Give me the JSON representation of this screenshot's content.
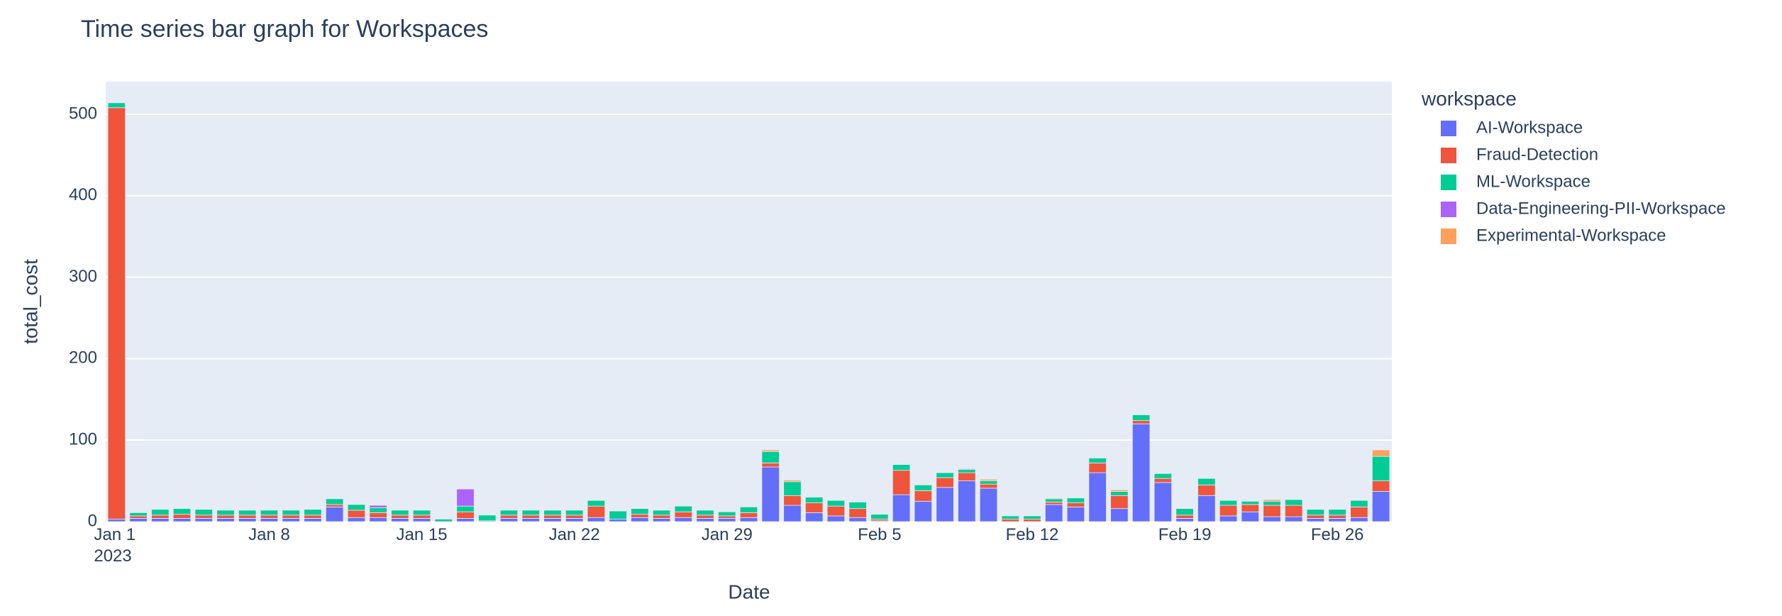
{
  "chart_data": {
    "type": "bar",
    "stacked": true,
    "title": "Time series bar graph for Workspaces",
    "x_label": "Date",
    "y_label": "total_cost",
    "legend_title": "workspace",
    "legend_position": "right",
    "x": [
      "2023-01-01",
      "2023-01-02",
      "2023-01-03",
      "2023-01-04",
      "2023-01-05",
      "2023-01-06",
      "2023-01-07",
      "2023-01-08",
      "2023-01-09",
      "2023-01-10",
      "2023-01-11",
      "2023-01-12",
      "2023-01-13",
      "2023-01-14",
      "2023-01-15",
      "2023-01-16",
      "2023-01-17",
      "2023-01-18",
      "2023-01-19",
      "2023-01-20",
      "2023-01-21",
      "2023-01-22",
      "2023-01-23",
      "2023-01-24",
      "2023-01-25",
      "2023-01-26",
      "2023-01-27",
      "2023-01-28",
      "2023-01-29",
      "2023-01-30",
      "2023-01-31",
      "2023-02-01",
      "2023-02-02",
      "2023-02-03",
      "2023-02-04",
      "2023-02-05",
      "2023-02-06",
      "2023-02-07",
      "2023-02-08",
      "2023-02-09",
      "2023-02-10",
      "2023-02-11",
      "2023-02-12",
      "2023-02-13",
      "2023-02-14",
      "2023-02-15",
      "2023-02-16",
      "2023-02-17",
      "2023-02-18",
      "2023-02-19",
      "2023-02-20",
      "2023-02-21",
      "2023-02-22",
      "2023-02-23",
      "2023-02-24",
      "2023-02-25",
      "2023-02-26",
      "2023-02-27",
      "2023-02-28"
    ],
    "xlim": [
      "2022-12-31T12:00",
      "2023-02-28T12:00"
    ],
    "xticks": [
      {
        "value": "2023-01-01",
        "label": "Jan 1\n2023"
      },
      {
        "value": "2023-01-08",
        "label": "Jan 8"
      },
      {
        "value": "2023-01-15",
        "label": "Jan 15"
      },
      {
        "value": "2023-01-22",
        "label": "Jan 22"
      },
      {
        "value": "2023-01-29",
        "label": "Jan 29"
      },
      {
        "value": "2023-02-05",
        "label": "Feb 5"
      },
      {
        "value": "2023-02-12",
        "label": "Feb 12"
      },
      {
        "value": "2023-02-19",
        "label": "Feb 19"
      },
      {
        "value": "2023-02-26",
        "label": "Feb 26"
      }
    ],
    "ylim": [
      0,
      540
    ],
    "yticks": [
      0,
      100,
      200,
      300,
      400,
      500
    ],
    "grid": true,
    "series": [
      {
        "name": "AI-Workspace",
        "color": "#636efa",
        "values": [
          3,
          4,
          4,
          4,
          4,
          4,
          4,
          4,
          4,
          4,
          18,
          5,
          5,
          4,
          4,
          0,
          4,
          1,
          4,
          4,
          4,
          4,
          5,
          3,
          5,
          4,
          5,
          4,
          4,
          5,
          67,
          20,
          11,
          7,
          5,
          1,
          33,
          25,
          42,
          50,
          41,
          0,
          0,
          21,
          18,
          60,
          16,
          120,
          48,
          4,
          32,
          7,
          12,
          6,
          6,
          4,
          4,
          5,
          37
        ]
      },
      {
        "name": "Fraud-Detection",
        "color": "#EF553B",
        "values": [
          505,
          3,
          4,
          5,
          4,
          4,
          4,
          4,
          4,
          4,
          3,
          9,
          6,
          4,
          4,
          0,
          8,
          0,
          4,
          4,
          4,
          4,
          14,
          0,
          4,
          4,
          7,
          4,
          3,
          6,
          5,
          12,
          12,
          12,
          11,
          2,
          30,
          13,
          12,
          10,
          5,
          3,
          3,
          3,
          5,
          12,
          16,
          4,
          5,
          4,
          13,
          13,
          9,
          14,
          14,
          4,
          4,
          13,
          13
        ]
      },
      {
        "name": "ML-Workspace",
        "color": "#00cc96",
        "values": [
          6,
          4,
          7,
          7,
          7,
          6,
          6,
          6,
          6,
          7,
          7,
          7,
          6,
          6,
          6,
          3,
          7,
          7,
          6,
          6,
          6,
          6,
          7,
          10,
          7,
          6,
          7,
          6,
          5,
          7,
          14,
          17,
          7,
          7,
          8,
          6,
          7,
          7,
          6,
          4,
          4,
          4,
          4,
          4,
          6,
          6,
          5,
          7,
          6,
          8,
          8,
          6,
          4,
          5,
          7,
          7,
          7,
          8,
          30
        ]
      },
      {
        "name": "Data-Engineering-PII-Workspace",
        "color": "#ab63fa",
        "values": [
          0,
          0,
          0,
          0,
          0,
          0,
          0,
          0,
          0,
          0,
          0,
          0,
          3,
          0,
          0,
          0,
          21,
          0,
          0,
          0,
          0,
          0,
          0,
          0,
          0,
          0,
          0,
          0,
          0,
          0,
          0,
          0,
          0,
          0,
          0,
          0,
          0,
          0,
          0,
          1,
          0,
          0,
          0,
          0,
          0,
          0,
          0,
          0,
          0,
          0,
          0,
          0,
          0,
          0,
          0,
          0,
          0,
          0,
          0
        ]
      },
      {
        "name": "Experimental-Workspace",
        "color": "#FFA15A",
        "values": [
          0,
          0,
          0,
          0,
          0,
          0,
          0,
          0,
          0,
          0,
          0,
          0,
          0,
          0,
          0,
          0,
          0,
          0,
          0,
          0,
          0,
          0,
          0,
          0,
          0,
          0,
          0,
          0,
          0,
          0,
          2,
          2,
          0,
          0,
          0,
          0,
          0,
          0,
          0,
          0,
          2,
          0,
          0,
          1,
          0,
          0,
          2,
          0,
          0,
          0,
          0,
          0,
          0,
          2,
          0,
          0,
          0,
          0,
          8
        ]
      }
    ]
  }
}
